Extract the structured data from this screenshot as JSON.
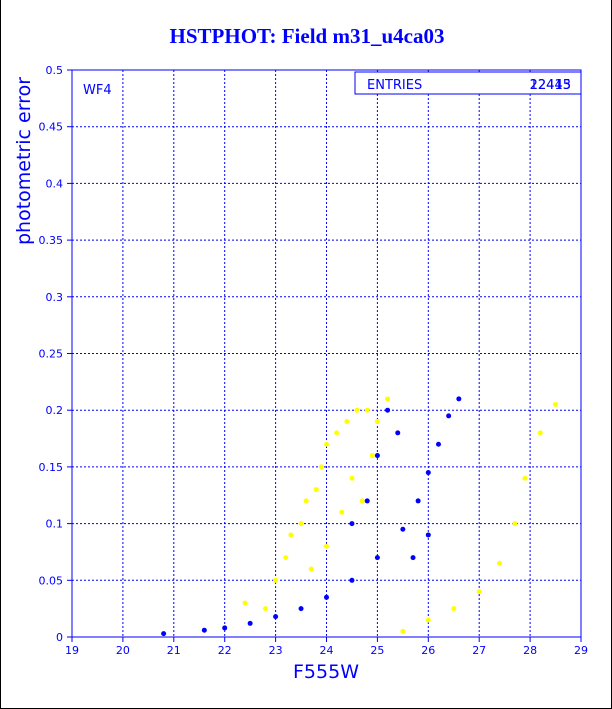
{
  "chart_data": {
    "type": "scatter",
    "title": "HSTPHOT: Field m31_u4ca03",
    "xlabel": "F555W",
    "ylabel": "photometric error",
    "xlim": [
      19,
      29
    ],
    "ylim": [
      0,
      0.5
    ],
    "x_ticks": [
      "19",
      "20",
      "21",
      "22",
      "23",
      "24",
      "25",
      "26",
      "27",
      "28",
      "29"
    ],
    "y_ticks": [
      "0",
      "0.05",
      "0.1",
      "0.15",
      "0.2",
      "0.25",
      "0.3",
      "0.35",
      "0.4",
      "0.45",
      "0.5"
    ],
    "grid": true,
    "panel_label": "WF4",
    "stats_box": {
      "label": "ENTRIES",
      "values": [
        "12413",
        "22445"
      ]
    },
    "colors": {
      "axes": "#0000ff",
      "background": "#ffffff"
    },
    "series": [
      {
        "color": "#ffff00",
        "values": [
          [
            22.4,
            0.03
          ],
          [
            22.8,
            0.025
          ],
          [
            23.0,
            0.05
          ],
          [
            23.2,
            0.07
          ],
          [
            23.3,
            0.09
          ],
          [
            23.5,
            0.1
          ],
          [
            23.6,
            0.12
          ],
          [
            23.8,
            0.13
          ],
          [
            23.9,
            0.15
          ],
          [
            24.0,
            0.17
          ],
          [
            24.2,
            0.18
          ],
          [
            24.4,
            0.19
          ],
          [
            24.6,
            0.2
          ],
          [
            24.8,
            0.2
          ],
          [
            24.0,
            0.08
          ],
          [
            23.7,
            0.06
          ],
          [
            24.3,
            0.11
          ],
          [
            24.5,
            0.14
          ],
          [
            24.9,
            0.16
          ],
          [
            25.0,
            0.19
          ],
          [
            24.7,
            0.12
          ],
          [
            25.2,
            0.21
          ],
          [
            25.5,
            0.005
          ],
          [
            26.0,
            0.015
          ],
          [
            26.5,
            0.025
          ],
          [
            27.0,
            0.04
          ],
          [
            27.4,
            0.065
          ],
          [
            27.7,
            0.1
          ],
          [
            27.9,
            0.14
          ],
          [
            28.2,
            0.18
          ],
          [
            28.5,
            0.205
          ]
        ]
      },
      {
        "color": "#0000ff",
        "values": [
          [
            20.8,
            0.003
          ],
          [
            21.6,
            0.006
          ],
          [
            22.0,
            0.008
          ],
          [
            22.5,
            0.012
          ],
          [
            23.0,
            0.018
          ],
          [
            23.5,
            0.025
          ],
          [
            24.0,
            0.035
          ],
          [
            24.5,
            0.05
          ],
          [
            25.0,
            0.07
          ],
          [
            25.5,
            0.095
          ],
          [
            25.8,
            0.12
          ],
          [
            26.0,
            0.145
          ],
          [
            26.2,
            0.17
          ],
          [
            26.4,
            0.195
          ],
          [
            26.6,
            0.21
          ],
          [
            24.8,
            0.12
          ],
          [
            25.0,
            0.16
          ],
          [
            25.2,
            0.2
          ],
          [
            24.5,
            0.1
          ],
          [
            25.4,
            0.18
          ],
          [
            25.7,
            0.07
          ],
          [
            26.0,
            0.09
          ]
        ]
      }
    ]
  }
}
